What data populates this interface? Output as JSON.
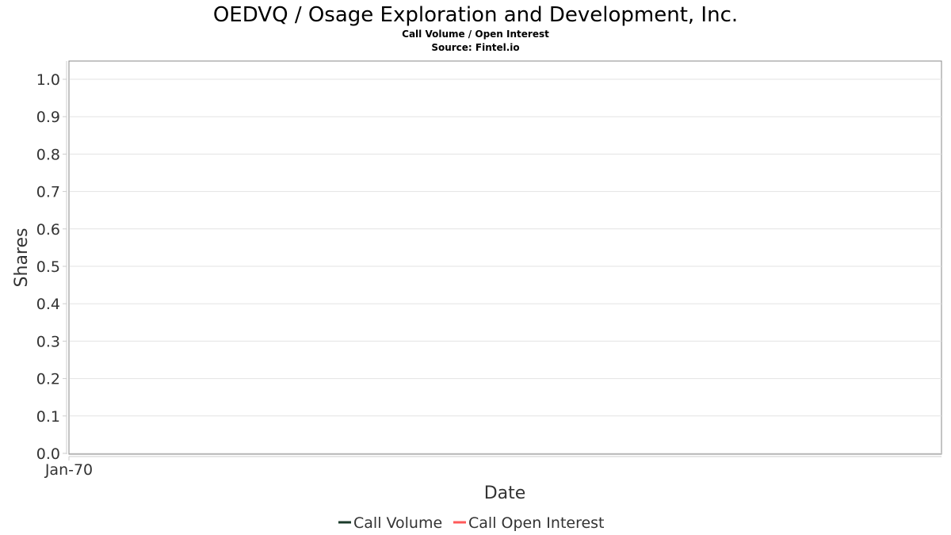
{
  "chart_data": {
    "type": "line",
    "title": "OEDVQ / Osage Exploration and Development, Inc.",
    "subtitle": "Call Volume / Open Interest",
    "source": "Source: Fintel.io",
    "xlabel": "Date",
    "ylabel": "Shares",
    "x_ticks": [
      "Jan-70"
    ],
    "y_ticks": [
      "0.0",
      "0.1",
      "0.2",
      "0.3",
      "0.4",
      "0.5",
      "0.6",
      "0.7",
      "0.8",
      "0.9",
      "1.0"
    ],
    "ylim": [
      0,
      1.0
    ],
    "grid": true,
    "legend_position": "bottom",
    "series": [
      {
        "name": "Call Volume",
        "color": "#1a3a2a",
        "values": []
      },
      {
        "name": "Call Open Interest",
        "color": "#ff5a5a",
        "values": []
      }
    ]
  }
}
